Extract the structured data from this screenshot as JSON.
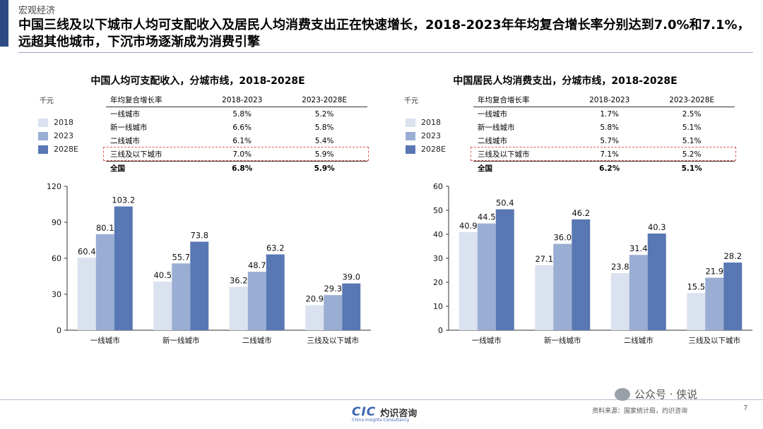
{
  "header": {
    "section": "宏观经济",
    "title": "中国三线及以下城市人均可支配收入及居民人均消费支出正在快速增长，2018-2023年年均复合增长率分别达到7.0%和7.1%，远超其他城市，下沉市场逐渐成为消费引擎"
  },
  "legend": [
    {
      "label": "2018",
      "color": "#dbe2ef"
    },
    {
      "label": "2023",
      "color": "#9aaed3"
    },
    {
      "label": "2028E",
      "color": "#5877b3"
    }
  ],
  "panels": [
    {
      "title": "中国人均可支配收入，分城市线，2018-2028E",
      "unit": "千元",
      "table": {
        "headers": [
          "年均复合增长率",
          "2018-2023",
          "2023-2028E"
        ],
        "rows": [
          {
            "label": "一线城市",
            "a": "5.8%",
            "b": "5.2%"
          },
          {
            "label": "新一线城市",
            "a": "6.6%",
            "b": "5.8%"
          },
          {
            "label": "二线城市",
            "a": "6.1%",
            "b": "5.4%"
          },
          {
            "label": "三线及以下城市",
            "a": "7.0%",
            "b": "5.9%"
          },
          {
            "label": "全国",
            "a": "6.8%",
            "b": "5.9%"
          }
        ]
      }
    },
    {
      "title": "中国居民人均消费支出，分城市线，2018-2028E",
      "unit": "千元",
      "table": {
        "headers": [
          "年均复合增长率",
          "2018-2023",
          "2023-2028E"
        ],
        "rows": [
          {
            "label": "一线城市",
            "a": "1.7%",
            "b": "2.5%"
          },
          {
            "label": "新一线城市",
            "a": "5.8%",
            "b": "5.1%"
          },
          {
            "label": "二线城市",
            "a": "5.7%",
            "b": "5.1%"
          },
          {
            "label": "三线及以下城市",
            "a": "7.1%",
            "b": "5.2%"
          },
          {
            "label": "全国",
            "a": "6.2%",
            "b": "5.1%"
          }
        ]
      }
    }
  ],
  "chart_data": [
    {
      "type": "bar",
      "title": "中国人均可支配收入，分城市线，2018-2028E",
      "ylabel": "千元",
      "categories": [
        "一线城市",
        "新一线城市",
        "二线城市",
        "三线及以下城市"
      ],
      "series": [
        {
          "name": "2018",
          "values": [
            60.4,
            40.5,
            36.2,
            20.9
          ]
        },
        {
          "name": "2023",
          "values": [
            80.1,
            55.7,
            48.7,
            29.3
          ]
        },
        {
          "name": "2028E",
          "values": [
            103.2,
            73.8,
            63.2,
            39.0
          ]
        }
      ],
      "ylim": [
        0,
        120
      ],
      "yticks": [
        0,
        30,
        60,
        90,
        120
      ],
      "grid": false,
      "legend": "left"
    },
    {
      "type": "bar",
      "title": "中国居民人均消费支出，分城市线，2018-2028E",
      "ylabel": "千元",
      "categories": [
        "一线城市",
        "新一线城市",
        "二线城市",
        "三线及以下城市"
      ],
      "series": [
        {
          "name": "2018",
          "values": [
            40.9,
            27.1,
            23.8,
            15.5
          ]
        },
        {
          "name": "2023",
          "values": [
            44.5,
            36.0,
            31.4,
            21.9
          ]
        },
        {
          "name": "2028E",
          "values": [
            50.4,
            46.2,
            40.3,
            28.2
          ]
        }
      ],
      "ylim": [
        0,
        60
      ],
      "yticks": [
        0,
        10,
        20,
        30,
        40,
        50,
        60
      ],
      "grid": false,
      "legend": "left"
    }
  ],
  "footer": {
    "logo_mark": "CIC",
    "logo_cn": "灼识咨询",
    "logo_en": "China Insights Consultancy",
    "source": "资料来源：国家统计局，灼识咨询",
    "wechat": "公众号 · 侠说",
    "page": "7"
  }
}
